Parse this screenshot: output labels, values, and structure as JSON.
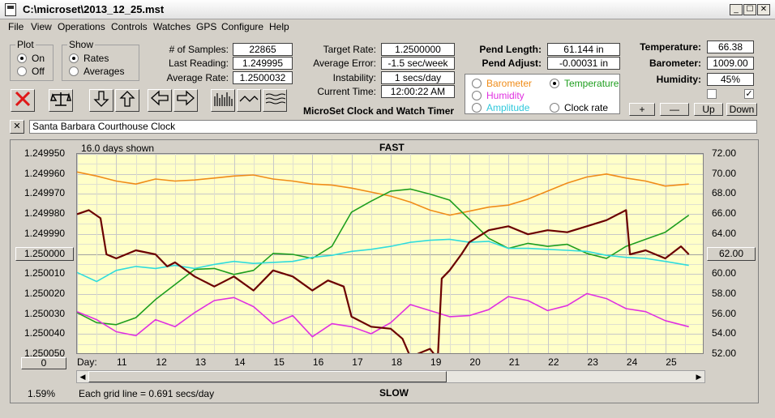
{
  "window": {
    "title": "C:\\microset\\2013_12_25.mst",
    "min": "_",
    "max": "☐",
    "close": "✕"
  },
  "menu": [
    "File",
    "View",
    "Operations",
    "Controls",
    "Watches",
    "GPS",
    "Configure",
    "Help"
  ],
  "plot_group": {
    "title": "Plot",
    "on": "On",
    "off": "Off",
    "selected": "On"
  },
  "show_group": {
    "title": "Show",
    "rates": "Rates",
    "averages": "Averages",
    "selected": "Rates"
  },
  "stats": {
    "samples_label": "# of Samples:",
    "samples": "22865",
    "last_label": "Last Reading:",
    "last": "1.249995",
    "avg_label": "Average Rate:",
    "avg": "1.2500032",
    "target_label": "Target Rate:",
    "target": "1.2500000",
    "err_label": "Average Error:",
    "err": "-1.5 sec/week",
    "inst_label": "Instability:",
    "inst": "1 secs/day",
    "time_label": "Current Time:",
    "time": "12:00:22 AM",
    "pendlen_label": "Pend Length:",
    "pendlen": "61.144 in",
    "pendadj_label": "Pend Adjust:",
    "pendadj": "-0.00031 in",
    "temp_label": "Temperature:",
    "temp": "66.38",
    "baro_label": "Barometer:",
    "baro": "1009.00",
    "hum_label": "Humidity:",
    "hum": "45%"
  },
  "app_caption": "MicroSet Clock and Watch Timer",
  "sensor_options": {
    "barometer": "Barometer",
    "temperature": "Temperature",
    "humidity": "Humidity",
    "amplitude": "Amplitude",
    "clockrate": "Clock rate",
    "selected": "Temperature"
  },
  "adjust_buttons": {
    "plus": "+",
    "minus": "—",
    "up": "Up",
    "down": "Down"
  },
  "clock_name": "Santa Barbara Courthouse Clock",
  "clear_name": "✕",
  "plot_header": {
    "days_shown": "16.0 days shown",
    "fast": "FAST",
    "slow": "SLOW"
  },
  "left_center_btn": "1.250000",
  "right_center_btn": "62.00",
  "offset_btn": "0",
  "percent": "1.59%",
  "grid_note": "Each grid line = 0.691 secs/day",
  "colors": {
    "rate": "#6b0000",
    "temperature": "#1e9e1e",
    "barometer": "#f08c18",
    "humidity": "#e030e0",
    "amplitude": "#30dcdc",
    "plot_bg": "#ffffc8"
  },
  "chart_data": {
    "type": "line",
    "xlabel": "Day:",
    "x_ticks": [
      "11",
      "12",
      "13",
      "14",
      "15",
      "16",
      "17",
      "18",
      "19",
      "20",
      "21",
      "22",
      "23",
      "24",
      "25"
    ],
    "xlim": [
      10.0,
      26.0
    ],
    "y_left_ticks": [
      "1.249950",
      "1.249960",
      "1.249970",
      "1.249980",
      "1.249990",
      "1.250000",
      "1.250010",
      "1.250020",
      "1.250030",
      "1.250040",
      "1.250050"
    ],
    "y_right_ticks": [
      "72.00",
      "70.00",
      "68.00",
      "66.00",
      "64.00",
      "62.00",
      "60.00",
      "58.00",
      "56.00",
      "54.00",
      "52.00"
    ],
    "ylim_left": [
      1.24995,
      1.25005
    ],
    "ylim_right": [
      52,
      72
    ],
    "grid": true,
    "series": [
      {
        "name": "Barometer",
        "color": "#f08c18",
        "axis": "right",
        "x": [
          10,
          10.5,
          11,
          11.5,
          12,
          12.5,
          13,
          13.5,
          14,
          14.5,
          15,
          15.5,
          16,
          16.5,
          17,
          17.5,
          18,
          18.5,
          19,
          19.5,
          20,
          20.5,
          21,
          21.5,
          22,
          22.5,
          23,
          23.5,
          24,
          24.5,
          25,
          25.6
        ],
        "y": [
          70.2,
          69.8,
          69.3,
          69.0,
          69.5,
          69.3,
          69.4,
          69.6,
          69.8,
          69.9,
          69.5,
          69.3,
          69.0,
          68.9,
          68.6,
          68.2,
          67.8,
          67.2,
          66.4,
          65.9,
          66.3,
          66.7,
          66.9,
          67.5,
          68.3,
          69.1,
          69.7,
          70.0,
          69.6,
          69.3,
          68.8,
          69.0
        ]
      },
      {
        "name": "Temperature",
        "color": "#1e9e1e",
        "axis": "right",
        "x": [
          10,
          10.5,
          11,
          11.5,
          12,
          12.5,
          13,
          13.5,
          14,
          14.5,
          15,
          15.5,
          16,
          16.5,
          17,
          17.5,
          18,
          18.5,
          19,
          19.5,
          20,
          20.5,
          21,
          21.5,
          22,
          22.5,
          23,
          23.5,
          24,
          24.5,
          25,
          25.6
        ],
        "y": [
          56.2,
          55.2,
          55.0,
          55.7,
          57.5,
          59.0,
          60.5,
          60.6,
          60.0,
          60.4,
          62.1,
          62.0,
          61.6,
          62.8,
          66.2,
          67.3,
          68.3,
          68.5,
          68.0,
          67.4,
          65.5,
          63.6,
          62.6,
          63.1,
          62.8,
          63.0,
          62.1,
          61.6,
          62.8,
          63.5,
          64.2,
          65.9
        ]
      },
      {
        "name": "Humidity",
        "color": "#e030e0",
        "axis": "right",
        "x": [
          10,
          10.5,
          11,
          11.5,
          12,
          12.5,
          13,
          13.5,
          14,
          14.5,
          15,
          15.5,
          16,
          16.5,
          17,
          17.5,
          18,
          18.5,
          19,
          19.5,
          20,
          20.5,
          21,
          21.5,
          22,
          22.5,
          23,
          23.5,
          24,
          24.5,
          25,
          25.6
        ],
        "y": [
          56.3,
          55.5,
          54.3,
          53.9,
          55.5,
          54.8,
          56.2,
          57.4,
          57.7,
          56.8,
          55.1,
          55.9,
          53.8,
          55.1,
          54.8,
          54.1,
          55.2,
          57.0,
          56.4,
          55.8,
          55.9,
          56.5,
          57.8,
          57.4,
          56.4,
          56.9,
          58.1,
          57.6,
          56.6,
          56.3,
          55.4,
          54.8
        ]
      },
      {
        "name": "Amplitude",
        "color": "#30dcdc",
        "axis": "right",
        "x": [
          10,
          10.5,
          11,
          11.5,
          12,
          12.5,
          13,
          13.5,
          14,
          14.5,
          15,
          15.5,
          16,
          16.5,
          17,
          17.5,
          18,
          18.5,
          19,
          19.5,
          20,
          20.5,
          21,
          21.5,
          22,
          22.5,
          23,
          23.5,
          24,
          24.5,
          25,
          25.6
        ],
        "y": [
          60.2,
          59.3,
          60.4,
          60.8,
          60.6,
          60.9,
          60.6,
          61.0,
          61.3,
          61.1,
          61.2,
          61.3,
          61.7,
          61.9,
          62.3,
          62.5,
          62.8,
          63.2,
          63.4,
          63.5,
          63.2,
          63.3,
          62.6,
          62.6,
          62.5,
          62.4,
          62.3,
          61.9,
          61.7,
          61.6,
          61.3,
          60.9
        ]
      },
      {
        "name": "Rate",
        "color": "#6b0000",
        "axis": "left",
        "x": [
          10,
          10.3,
          10.6,
          10.75,
          11,
          11.5,
          12,
          12.3,
          12.5,
          13,
          13.5,
          14,
          14.5,
          15,
          15.5,
          16,
          16.4,
          16.8,
          17,
          17.5,
          18,
          18.3,
          18.5,
          19,
          19.2,
          19.3,
          19.5,
          19.8,
          20,
          20.5,
          21,
          21.5,
          22,
          22.5,
          23,
          23.5,
          24,
          24.1,
          24.5,
          25,
          25.4,
          25.6
        ],
        "y": [
          1.24998,
          1.249978,
          1.249982,
          1.25,
          1.250002,
          1.249998,
          1.25,
          1.250006,
          1.250004,
          1.250011,
          1.250016,
          1.250011,
          1.250018,
          1.250008,
          1.250011,
          1.250018,
          1.250013,
          1.250016,
          1.250031,
          1.250036,
          1.250037,
          1.250042,
          1.250051,
          1.250047,
          1.250052,
          1.250012,
          1.250008,
          1.25,
          1.249994,
          1.249988,
          1.249986,
          1.24999,
          1.249988,
          1.249989,
          1.249986,
          1.249983,
          1.249978,
          1.25,
          1.249998,
          1.250002,
          1.249996,
          1.25
        ]
      }
    ]
  }
}
